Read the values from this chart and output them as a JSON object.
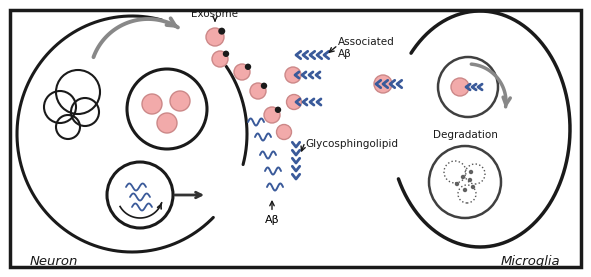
{
  "pink": "#f2aaaa",
  "pink_edge": "#cc8888",
  "black": "#1a1a1a",
  "dark": "#333333",
  "blue": "#3a5a9a",
  "gray": "#888888",
  "cell_lw": 2.2,
  "neuron_label": "Neuron",
  "microglia_label": "Microglia",
  "exosome_label": "Exosome",
  "ab_label": "Aβ",
  "assoc_label": "Associated\nAβ",
  "glyco_label": "Glycosphingolipid",
  "degrad_label": "Degradation"
}
